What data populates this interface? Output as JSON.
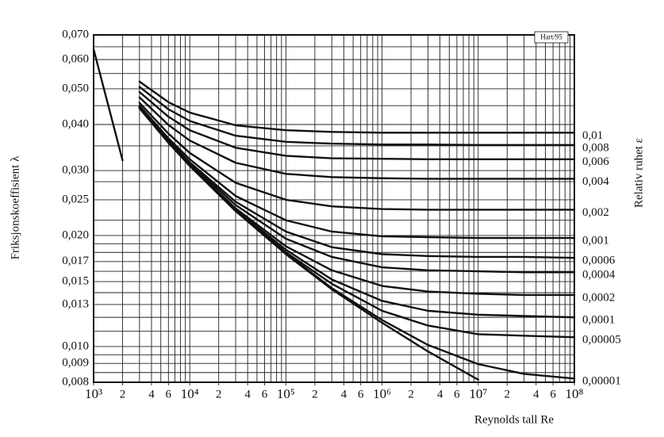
{
  "chart_data": {
    "type": "line",
    "annotation": "Hart/95",
    "xlabel": "Reynolds tall  Re",
    "ylabel": "Friksjonskoeffisient  λ",
    "y2label": "Relativ ruhet  ε",
    "xscale": "log",
    "yscale": "log",
    "grid": true,
    "color": "#111111",
    "xlim": [
      1000.0,
      100000000.0
    ],
    "ylim": [
      0.008,
      0.07
    ],
    "xticks": [
      {
        "value": 1000.0,
        "label": "10³"
      },
      {
        "value": 2000.0,
        "label": "2"
      },
      {
        "value": 4000.0,
        "label": "4"
      },
      {
        "value": 6000.0,
        "label": "6"
      },
      {
        "value": 10000.0,
        "label": "10⁴"
      },
      {
        "value": 20000.0,
        "label": "2"
      },
      {
        "value": 40000.0,
        "label": "4"
      },
      {
        "value": 60000.0,
        "label": "6"
      },
      {
        "value": 100000.0,
        "label": "10⁵"
      },
      {
        "value": 200000.0,
        "label": "2"
      },
      {
        "value": 400000.0,
        "label": "4"
      },
      {
        "value": 600000.0,
        "label": "6"
      },
      {
        "value": 1000000.0,
        "label": "10⁶"
      },
      {
        "value": 2000000.0,
        "label": "2"
      },
      {
        "value": 4000000.0,
        "label": "4"
      },
      {
        "value": 6000000.0,
        "label": "6"
      },
      {
        "value": 10000000.0,
        "label": "10⁷"
      },
      {
        "value": 20000000.0,
        "label": "2"
      },
      {
        "value": 40000000.0,
        "label": "4"
      },
      {
        "value": 60000000.0,
        "label": "6"
      },
      {
        "value": 100000000.0,
        "label": "10⁸"
      }
    ],
    "yticks": [
      {
        "value": 0.07,
        "label": "0,070"
      },
      {
        "value": 0.06,
        "label": "0,060"
      },
      {
        "value": 0.05,
        "label": "0,050"
      },
      {
        "value": 0.04,
        "label": "0,040"
      },
      {
        "value": 0.03,
        "label": "0,030"
      },
      {
        "value": 0.025,
        "label": "0,025"
      },
      {
        "value": 0.02,
        "label": "0,020"
      },
      {
        "value": 0.017,
        "label": "0,017"
      },
      {
        "value": 0.015,
        "label": "0,015"
      },
      {
        "value": 0.013,
        "label": "0,013"
      },
      {
        "value": 0.01,
        "label": "0,010"
      },
      {
        "value": 0.009,
        "label": "0,009"
      },
      {
        "value": 0.008,
        "label": "0,008"
      }
    ],
    "xgrid": [
      1000.0,
      2000.0,
      3000.0,
      4000.0,
      5000.0,
      6000.0,
      7000.0,
      8000.0,
      9000.0,
      10000.0,
      20000.0,
      30000.0,
      40000.0,
      50000.0,
      60000.0,
      70000.0,
      80000.0,
      90000.0,
      100000.0,
      200000.0,
      300000.0,
      400000.0,
      500000.0,
      600000.0,
      700000.0,
      800000.0,
      900000.0,
      1000000.0,
      2000000.0,
      3000000.0,
      4000000.0,
      5000000.0,
      6000000.0,
      7000000.0,
      8000000.0,
      9000000.0,
      10000000.0,
      20000000.0,
      30000000.0,
      40000000.0,
      50000000.0,
      60000000.0,
      70000000.0,
      80000000.0,
      90000000.0,
      100000000.0
    ],
    "ygrid": [
      0.0085,
      0.0095,
      0.011,
      0.012,
      0.014,
      0.016,
      0.018,
      0.019,
      0.022,
      0.028,
      0.035,
      0.045,
      0.055,
      0.065
    ],
    "x": [
      1000.0,
      2000.0,
      3000.0,
      6000.0,
      10000.0,
      30000.0,
      100000.0,
      300000.0,
      1000000.0,
      3000000.0,
      10000000.0,
      30000000.0,
      100000000.0
    ],
    "series": [
      {
        "values": [
          0.064,
          0.032,
          null,
          null,
          null,
          null,
          null,
          null,
          null,
          null,
          null,
          null,
          null
        ]
      },
      {
        "name": "0,01",
        "values": [
          null,
          null,
          0.0523,
          0.046,
          0.0431,
          0.0398,
          0.0386,
          0.0382,
          0.038,
          0.038,
          0.038,
          0.038,
          0.038
        ]
      },
      {
        "name": "0,008",
        "values": [
          null,
          null,
          0.0506,
          0.044,
          0.0409,
          0.0373,
          0.0359,
          0.0355,
          0.0353,
          0.0353,
          0.0352,
          0.0352,
          0.0352
        ]
      },
      {
        "name": "0,006",
        "values": [
          null,
          null,
          0.049,
          0.042,
          0.0386,
          0.0346,
          0.0329,
          0.0324,
          0.0323,
          0.0322,
          0.0322,
          0.0322,
          0.0322
        ]
      },
      {
        "name": "0,004",
        "values": [
          null,
          null,
          0.0474,
          0.0399,
          0.0362,
          0.0315,
          0.0294,
          0.0288,
          0.0286,
          0.0285,
          0.0285,
          0.0285,
          0.0285
        ]
      },
      {
        "name": "0,002",
        "values": [
          null,
          null,
          0.0458,
          0.0378,
          0.0335,
          0.0278,
          0.025,
          0.024,
          0.0236,
          0.0235,
          0.0235,
          0.0235,
          0.0235
        ]
      },
      {
        "name": "0,001",
        "values": [
          null,
          null,
          0.045,
          0.0367,
          0.0322,
          0.0256,
          0.022,
          0.0205,
          0.0199,
          0.0198,
          0.0197,
          0.0197,
          0.0197
        ]
      },
      {
        "name": "0,0006",
        "values": [
          null,
          null,
          0.0447,
          0.0363,
          0.0316,
          0.0247,
          0.0205,
          0.0186,
          0.0178,
          0.0176,
          0.0175,
          0.0175,
          0.0174
        ]
      },
      {
        "name": "0,0004",
        "values": [
          null,
          null,
          0.0446,
          0.0361,
          0.0314,
          0.0242,
          0.0196,
          0.0175,
          0.0164,
          0.0161,
          0.016,
          0.0159,
          0.0159
        ]
      },
      {
        "name": "0,0002",
        "values": [
          null,
          null,
          0.0444,
          0.0359,
          0.0311,
          0.0237,
          0.0187,
          0.0161,
          0.0146,
          0.0141,
          0.0139,
          0.0138,
          0.0138
        ]
      },
      {
        "name": "0,0001",
        "values": [
          null,
          null,
          0.0444,
          0.0358,
          0.031,
          0.0235,
          0.0183,
          0.0152,
          0.0133,
          0.0125,
          0.0122,
          0.0121,
          0.012
        ]
      },
      {
        "name": "0,00005",
        "values": [
          null,
          null,
          0.0443,
          0.0358,
          0.0309,
          0.0234,
          0.018,
          0.0148,
          0.0125,
          0.0114,
          0.0108,
          0.0107,
          0.0106
        ]
      },
      {
        "name": "0,00001",
        "values": [
          null,
          null,
          0.0443,
          0.0357,
          0.0309,
          0.0233,
          0.0179,
          0.0144,
          0.0118,
          0.0101,
          0.00896,
          0.00843,
          0.00819
        ]
      },
      {
        "values": [
          null,
          null,
          0.0443,
          0.0357,
          0.0309,
          0.0233,
          0.0178,
          0.0143,
          0.0116,
          0.0097,
          0.00813,
          null,
          null
        ]
      }
    ]
  }
}
